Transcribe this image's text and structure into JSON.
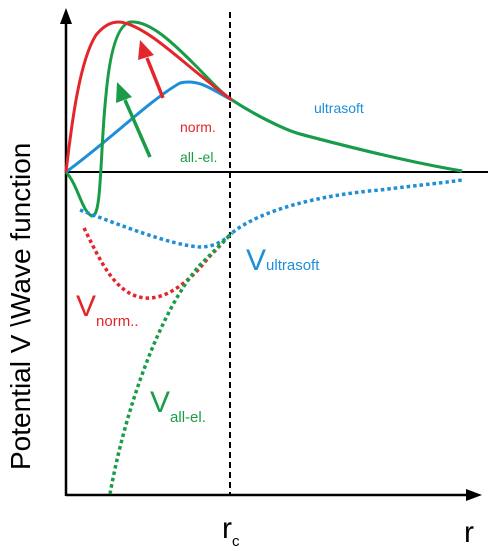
{
  "axes": {
    "ylabel": "Potential V \\Wave function",
    "xlabel": "r",
    "rc_main": "r",
    "rc_sub": "c"
  },
  "curves": {
    "norm_label": "norm.",
    "allel_label": "all.-el.",
    "ultrasoft_label": "ultrasoft"
  },
  "potentials": {
    "ultrasoft_main": "V",
    "ultrasoft_sub": "ultrasoft",
    "norm_main": "V",
    "norm_sub": "norm..",
    "allel_main": "V",
    "allel_sub": "all-el."
  },
  "colors": {
    "red": "#e3262b",
    "green": "#1a9c46",
    "blue": "#1e8fd6",
    "black": "#000000"
  }
}
